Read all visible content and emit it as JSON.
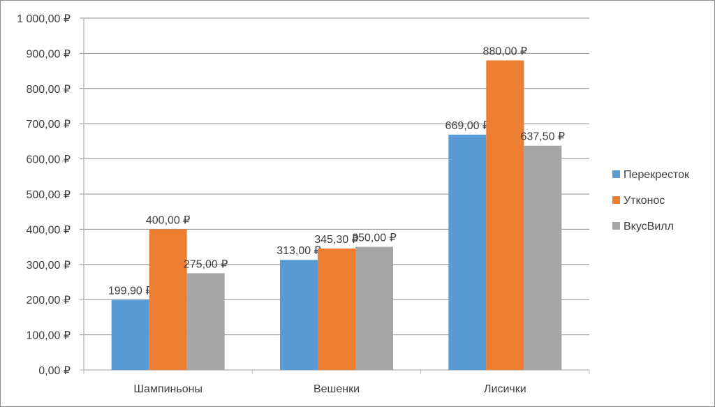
{
  "chart_data": {
    "type": "bar",
    "categories": [
      "Шампиньоны",
      "Вешенки",
      "Лисички"
    ],
    "series": [
      {
        "name": "Перекресток",
        "color": "#5B9BD5",
        "values": [
          199.9,
          313.0,
          669.0
        ],
        "labels": [
          "199,90 ₽",
          "313,00 ₽",
          "669,00 ₽"
        ]
      },
      {
        "name": "Утконос",
        "color": "#ED7D31",
        "values": [
          400.0,
          345.3,
          880.0
        ],
        "labels": [
          "400,00 ₽",
          "345,30 ₽",
          "880,00 ₽"
        ]
      },
      {
        "name": "ВкусВилл",
        "color": "#A5A5A5",
        "values": [
          275.0,
          350.0,
          637.5
        ],
        "labels": [
          "275,00 ₽",
          "350,00 ₽",
          "637,50 ₽"
        ]
      }
    ],
    "ylim": [
      0,
      1000
    ],
    "yticks": [
      0,
      100,
      200,
      300,
      400,
      500,
      600,
      700,
      800,
      900,
      1000
    ],
    "ytick_labels": [
      "0,00 ₽",
      "100,00 ₽",
      "200,00 ₽",
      "300,00 ₽",
      "400,00 ₽",
      "500,00 ₽",
      "600,00 ₽",
      "700,00 ₽",
      "800,00 ₽",
      "900,00 ₽",
      "1 000,00 ₽"
    ],
    "grid": true,
    "legend": "right"
  }
}
